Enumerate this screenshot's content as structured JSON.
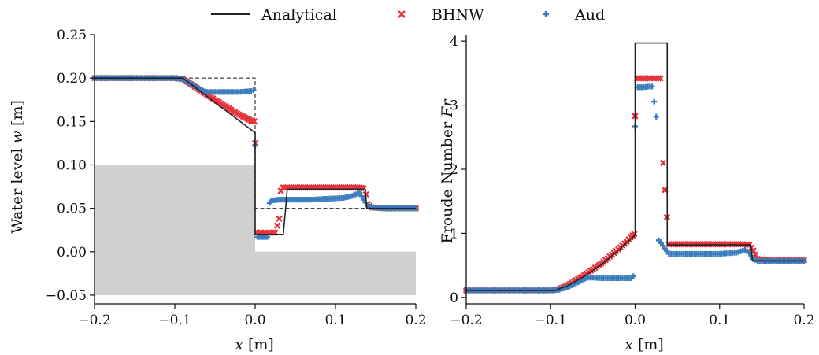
{
  "legend": {
    "entries": [
      {
        "label": "Analytical",
        "marker": "line",
        "color": "#222222"
      },
      {
        "label": "BHNW",
        "marker": "x",
        "color": "#e8323c"
      },
      {
        "label": "Aud",
        "marker": "+",
        "color": "#3a7dbf"
      }
    ]
  },
  "chart_data": [
    {
      "type": "scatter",
      "xlabel_pre": "x",
      "xlabel_post": " [m]",
      "ylabel_pre": "Water level ",
      "ylabel_var": "w",
      "ylabel_post": " [m]",
      "xlim": [
        -0.2,
        0.2
      ],
      "ylim": [
        -0.06,
        0.25
      ],
      "xticks": [
        -0.2,
        -0.1,
        0.0,
        0.1,
        0.2
      ],
      "xtick_labels": [
        "−0.2",
        "−0.1",
        "0.0",
        "0.1",
        "0.2"
      ],
      "yticks": [
        -0.05,
        0.0,
        0.05,
        0.1,
        0.15,
        0.2,
        0.25
      ],
      "ytick_labels": [
        "−0.05",
        "0.00",
        "0.05",
        "0.10",
        "0.15",
        "0.20",
        "0.25"
      ],
      "grid": false,
      "bed": {
        "color": "#d0d0d0",
        "x": [
          -0.2,
          0.0,
          0.0,
          0.2
        ],
        "top": [
          0.1,
          0.1,
          0.0,
          0.0
        ],
        "bottom": -0.05
      },
      "initial_condition": {
        "style": "dashed",
        "x": [
          -0.2,
          0.0,
          0.0,
          0.2
        ],
        "y": [
          0.2,
          0.2,
          0.05,
          0.05
        ]
      },
      "series": [
        {
          "name": "Analytical",
          "x": [
            -0.2,
            -0.09,
            -0.08,
            -0.06,
            -0.04,
            -0.02,
            0.0,
            0.0,
            0.0,
            0.02,
            0.035,
            0.037,
            0.04,
            0.04,
            0.137,
            0.139,
            0.2
          ],
          "y": [
            0.2,
            0.2,
            0.193,
            0.179,
            0.165,
            0.151,
            0.137,
            0.1,
            0.02,
            0.02,
            0.02,
            0.04,
            0.072,
            0.072,
            0.072,
            0.05,
            0.05
          ]
        },
        {
          "name": "BHNW",
          "x": [
            -0.2,
            -0.1,
            -0.09,
            -0.08,
            -0.06,
            -0.04,
            -0.02,
            -0.005,
            -0.001,
            0.0,
            0.002,
            0.005,
            0.01,
            0.02,
            0.025,
            0.03,
            0.032,
            0.035,
            0.045,
            0.06,
            0.08,
            0.1,
            0.12,
            0.13,
            0.135,
            0.138,
            0.14,
            0.145,
            0.16,
            0.18,
            0.2
          ],
          "y": [
            0.2,
            0.2,
            0.199,
            0.193,
            0.181,
            0.169,
            0.158,
            0.151,
            0.15,
            0.125,
            0.022,
            0.022,
            0.022,
            0.022,
            0.022,
            0.038,
            0.07,
            0.074,
            0.074,
            0.074,
            0.074,
            0.074,
            0.074,
            0.074,
            0.073,
            0.066,
            0.055,
            0.051,
            0.05,
            0.05,
            0.05
          ]
        },
        {
          "name": "Aud",
          "x": [
            -0.2,
            -0.1,
            -0.09,
            -0.08,
            -0.07,
            -0.065,
            -0.06,
            -0.04,
            -0.02,
            -0.005,
            -0.002,
            0.0,
            0.003,
            0.01,
            0.015,
            0.018,
            0.02,
            0.03,
            0.05,
            0.07,
            0.09,
            0.11,
            0.12,
            0.125,
            0.13,
            0.135,
            0.14,
            0.145,
            0.16,
            0.18,
            0.2
          ],
          "y": [
            0.2,
            0.2,
            0.199,
            0.193,
            0.188,
            0.185,
            0.184,
            0.184,
            0.184,
            0.185,
            0.186,
            0.122,
            0.017,
            0.017,
            0.017,
            0.056,
            0.059,
            0.06,
            0.06,
            0.06,
            0.061,
            0.062,
            0.064,
            0.066,
            0.068,
            0.06,
            0.053,
            0.051,
            0.05,
            0.05,
            0.05
          ]
        }
      ]
    },
    {
      "type": "scatter",
      "xlabel_pre": "x",
      "xlabel_post": " [m]",
      "ylabel_pre": "Froude Number ",
      "ylabel_var": "Fr",
      "ylabel_post": "",
      "xlim": [
        -0.2,
        0.2
      ],
      "ylim": [
        -0.1,
        4.1
      ],
      "xticks": [
        -0.2,
        -0.1,
        0.0,
        0.1,
        0.2
      ],
      "xtick_labels": [
        "−0.2",
        "−0.1",
        "0.0",
        "0.1",
        "0.2"
      ],
      "yticks": [
        0,
        1,
        2,
        3,
        4
      ],
      "ytick_labels": [
        "0",
        "1",
        "2",
        "3",
        "4"
      ],
      "grid": false,
      "series": [
        {
          "name": "Analytical",
          "x": [
            -0.2,
            -0.095,
            -0.08,
            -0.06,
            -0.04,
            -0.02,
            0.0,
            0.0,
            0.0,
            0.02,
            0.038,
            0.038,
            0.04,
            0.137,
            0.139,
            0.2
          ],
          "y": [
            0.11,
            0.11,
            0.18,
            0.33,
            0.51,
            0.73,
            0.97,
            3.97,
            3.97,
            3.97,
            3.97,
            0.82,
            0.82,
            0.82,
            0.57,
            0.57
          ]
        },
        {
          "name": "BHNW",
          "x": [
            -0.2,
            -0.1,
            -0.09,
            -0.08,
            -0.07,
            -0.06,
            -0.05,
            -0.04,
            -0.03,
            -0.02,
            -0.01,
            -0.005,
            -0.001,
            0.0,
            0.002,
            0.01,
            0.02,
            0.025,
            0.03,
            0.033,
            0.04,
            0.06,
            0.08,
            0.1,
            0.12,
            0.13,
            0.135,
            0.14,
            0.145,
            0.16,
            0.18,
            0.2
          ],
          "y": [
            0.11,
            0.11,
            0.13,
            0.19,
            0.27,
            0.35,
            0.44,
            0.53,
            0.64,
            0.75,
            0.87,
            0.94,
            0.99,
            2.83,
            3.42,
            3.42,
            3.42,
            3.42,
            3.42,
            2.1,
            0.83,
            0.83,
            0.83,
            0.83,
            0.83,
            0.83,
            0.82,
            0.73,
            0.6,
            0.58,
            0.58,
            0.58
          ]
        },
        {
          "name": "Aud",
          "x": [
            -0.2,
            -0.1,
            -0.09,
            -0.08,
            -0.07,
            -0.06,
            -0.055,
            -0.05,
            -0.04,
            -0.02,
            -0.005,
            -0.002,
            0.0,
            0.003,
            0.01,
            0.015,
            0.02,
            0.025,
            0.028,
            0.04,
            0.06,
            0.08,
            0.1,
            0.12,
            0.125,
            0.13,
            0.135,
            0.14,
            0.145,
            0.16,
            0.18,
            0.2
          ],
          "y": [
            0.11,
            0.11,
            0.12,
            0.16,
            0.22,
            0.29,
            0.31,
            0.31,
            0.3,
            0.3,
            0.3,
            0.33,
            2.67,
            3.28,
            3.28,
            3.29,
            3.29,
            2.82,
            0.89,
            0.68,
            0.68,
            0.68,
            0.68,
            0.7,
            0.72,
            0.74,
            0.7,
            0.6,
            0.57,
            0.57,
            0.57,
            0.57
          ]
        }
      ]
    }
  ]
}
